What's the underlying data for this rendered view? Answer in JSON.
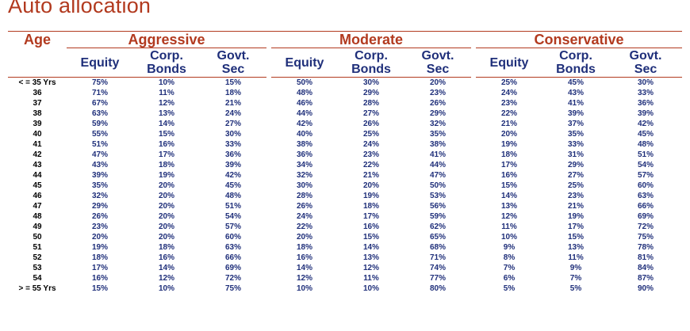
{
  "title": "Auto allocation",
  "age_label": "Age",
  "groups": [
    "Aggressive",
    "Moderate",
    "Conservative"
  ],
  "sub_headers": [
    {
      "line1": "Equity",
      "line2": ""
    },
    {
      "line1": "Corp.",
      "line2": "Bonds"
    },
    {
      "line1": "Govt.",
      "line2": "Sec"
    }
  ],
  "colors": {
    "accent": "#b23a1f",
    "values": "#1f2f7a",
    "age": "#000000"
  },
  "rows": [
    {
      "age": "< = 35 Yrs",
      "values": [
        "75%",
        "10%",
        "15%",
        "50%",
        "30%",
        "20%",
        "25%",
        "45%",
        "30%"
      ]
    },
    {
      "age": "36",
      "values": [
        "71%",
        "11%",
        "18%",
        "48%",
        "29%",
        "23%",
        "24%",
        "43%",
        "33%"
      ]
    },
    {
      "age": "37",
      "values": [
        "67%",
        "12%",
        "21%",
        "46%",
        "28%",
        "26%",
        "23%",
        "41%",
        "36%"
      ]
    },
    {
      "age": "38",
      "values": [
        "63%",
        "13%",
        "24%",
        "44%",
        "27%",
        "29%",
        "22%",
        "39%",
        "39%"
      ]
    },
    {
      "age": "39",
      "values": [
        "59%",
        "14%",
        "27%",
        "42%",
        "26%",
        "32%",
        "21%",
        "37%",
        "42%"
      ]
    },
    {
      "age": "40",
      "values": [
        "55%",
        "15%",
        "30%",
        "40%",
        "25%",
        "35%",
        "20%",
        "35%",
        "45%"
      ]
    },
    {
      "age": "41",
      "values": [
        "51%",
        "16%",
        "33%",
        "38%",
        "24%",
        "38%",
        "19%",
        "33%",
        "48%"
      ]
    },
    {
      "age": "42",
      "values": [
        "47%",
        "17%",
        "36%",
        "36%",
        "23%",
        "41%",
        "18%",
        "31%",
        "51%"
      ]
    },
    {
      "age": "43",
      "values": [
        "43%",
        "18%",
        "39%",
        "34%",
        "22%",
        "44%",
        "17%",
        "29%",
        "54%"
      ]
    },
    {
      "age": "44",
      "values": [
        "39%",
        "19%",
        "42%",
        "32%",
        "21%",
        "47%",
        "16%",
        "27%",
        "57%"
      ]
    },
    {
      "age": "45",
      "values": [
        "35%",
        "20%",
        "45%",
        "30%",
        "20%",
        "50%",
        "15%",
        "25%",
        "60%"
      ]
    },
    {
      "age": "46",
      "values": [
        "32%",
        "20%",
        "48%",
        "28%",
        "19%",
        "53%",
        "14%",
        "23%",
        "63%"
      ]
    },
    {
      "age": "47",
      "values": [
        "29%",
        "20%",
        "51%",
        "26%",
        "18%",
        "56%",
        "13%",
        "21%",
        "66%"
      ]
    },
    {
      "age": "48",
      "values": [
        "26%",
        "20%",
        "54%",
        "24%",
        "17%",
        "59%",
        "12%",
        "19%",
        "69%"
      ]
    },
    {
      "age": "49",
      "values": [
        "23%",
        "20%",
        "57%",
        "22%",
        "16%",
        "62%",
        "11%",
        "17%",
        "72%"
      ]
    },
    {
      "age": "50",
      "values": [
        "20%",
        "20%",
        "60%",
        "20%",
        "15%",
        "65%",
        "10%",
        "15%",
        "75%"
      ]
    },
    {
      "age": "51",
      "values": [
        "19%",
        "18%",
        "63%",
        "18%",
        "14%",
        "68%",
        "9%",
        "13%",
        "78%"
      ]
    },
    {
      "age": "52",
      "values": [
        "18%",
        "16%",
        "66%",
        "16%",
        "13%",
        "71%",
        "8%",
        "11%",
        "81%"
      ]
    },
    {
      "age": "53",
      "values": [
        "17%",
        "14%",
        "69%",
        "14%",
        "12%",
        "74%",
        "7%",
        "9%",
        "84%"
      ]
    },
    {
      "age": "54",
      "values": [
        "16%",
        "12%",
        "72%",
        "12%",
        "11%",
        "77%",
        "6%",
        "7%",
        "87%"
      ]
    },
    {
      "age": "> = 55 Yrs",
      "values": [
        "15%",
        "10%",
        "75%",
        "10%",
        "10%",
        "80%",
        "5%",
        "5%",
        "90%"
      ]
    }
  ]
}
